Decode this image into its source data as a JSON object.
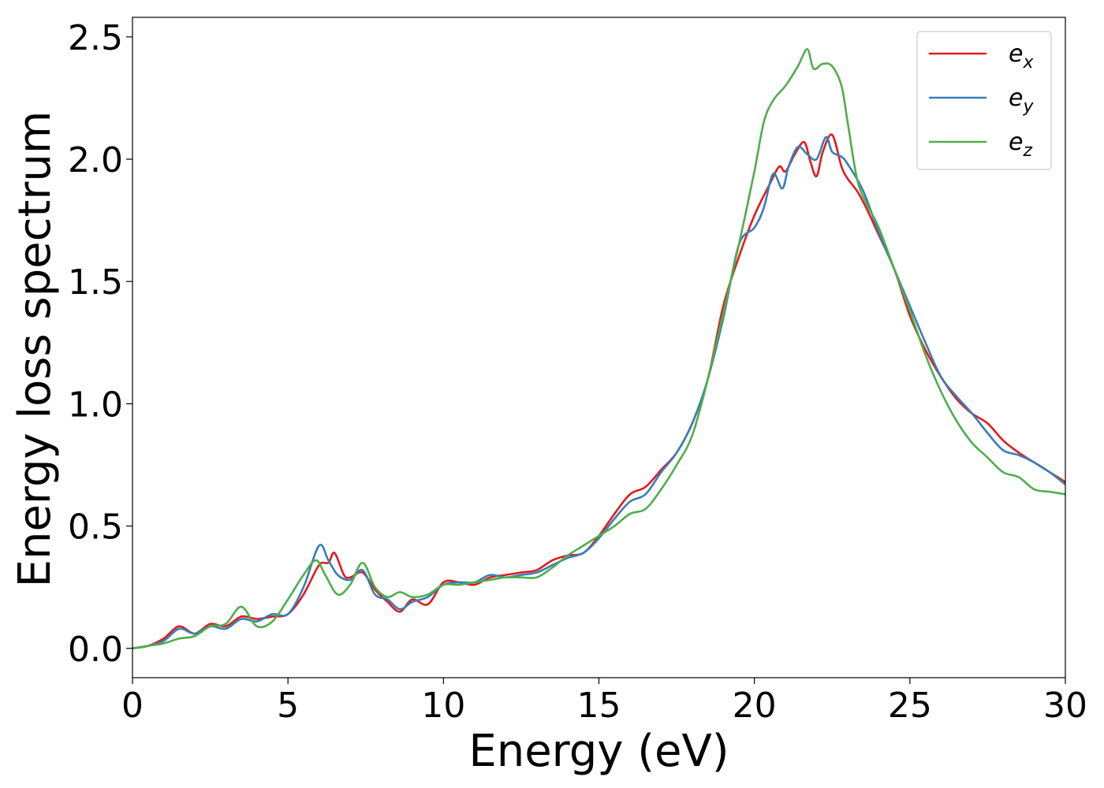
{
  "chart_data": {
    "type": "line",
    "xlabel": "Energy (eV)",
    "ylabel": "Energy loss spectrum",
    "xlim": [
      0,
      30
    ],
    "ylim": [
      -0.12,
      2.58
    ],
    "xticks": [
      "0",
      "5",
      "10",
      "15",
      "20",
      "25",
      "30"
    ],
    "yticks": [
      "0.0",
      "0.5",
      "1.0",
      "1.5",
      "2.0",
      "2.5"
    ],
    "grid": false,
    "legend_position": "top-right",
    "series": [
      {
        "name": "e_x",
        "label_base": "e",
        "label_sub": "x",
        "color": "#e41a1c",
        "x": [
          0,
          0.5,
          1.0,
          1.5,
          2.0,
          2.5,
          3.0,
          3.5,
          4.0,
          4.5,
          5.0,
          5.5,
          6.0,
          6.3,
          6.5,
          6.8,
          7.0,
          7.4,
          7.8,
          8.2,
          8.6,
          9.0,
          9.5,
          10.0,
          10.5,
          11.0,
          11.5,
          12.0,
          12.5,
          13.0,
          13.5,
          14.0,
          14.5,
          15.0,
          15.5,
          16.0,
          16.5,
          17.0,
          17.5,
          18.0,
          18.5,
          19.0,
          19.5,
          20.0,
          20.5,
          20.8,
          21.0,
          21.3,
          21.6,
          21.8,
          22.0,
          22.2,
          22.5,
          22.8,
          23.0,
          23.3,
          23.6,
          24.0,
          24.5,
          25.0,
          25.5,
          26.0,
          26.5,
          27.0,
          27.5,
          28.0,
          28.5,
          29.0,
          29.5,
          30.0
        ],
        "y": [
          0.0,
          0.01,
          0.04,
          0.09,
          0.06,
          0.1,
          0.09,
          0.13,
          0.12,
          0.13,
          0.14,
          0.22,
          0.34,
          0.35,
          0.39,
          0.3,
          0.29,
          0.31,
          0.24,
          0.19,
          0.15,
          0.2,
          0.18,
          0.27,
          0.27,
          0.26,
          0.29,
          0.3,
          0.31,
          0.32,
          0.36,
          0.38,
          0.39,
          0.46,
          0.55,
          0.63,
          0.66,
          0.73,
          0.8,
          0.92,
          1.1,
          1.4,
          1.6,
          1.77,
          1.9,
          1.97,
          1.95,
          2.02,
          2.07,
          1.99,
          1.93,
          2.03,
          2.1,
          1.97,
          1.92,
          1.87,
          1.8,
          1.69,
          1.55,
          1.36,
          1.22,
          1.11,
          1.02,
          0.96,
          0.92,
          0.85,
          0.8,
          0.76,
          0.72,
          0.68
        ]
      },
      {
        "name": "e_y",
        "label_base": "e",
        "label_sub": "y",
        "color": "#377eb8",
        "x": [
          0,
          0.5,
          1.0,
          1.5,
          2.0,
          2.5,
          3.0,
          3.5,
          4.0,
          4.5,
          5.0,
          5.5,
          6.0,
          6.3,
          6.6,
          7.0,
          7.4,
          7.8,
          8.2,
          8.6,
          9.0,
          9.5,
          10.0,
          10.5,
          11.0,
          11.5,
          12.0,
          12.5,
          13.0,
          13.5,
          14.0,
          14.5,
          15.0,
          15.5,
          16.0,
          16.5,
          17.0,
          17.5,
          18.0,
          18.5,
          19.0,
          19.5,
          20.0,
          20.3,
          20.6,
          20.9,
          21.1,
          21.4,
          21.7,
          22.0,
          22.3,
          22.5,
          22.8,
          23.0,
          23.5,
          24.0,
          24.5,
          25.0,
          25.5,
          26.0,
          26.5,
          27.0,
          27.5,
          28.0,
          28.5,
          29.0,
          29.5,
          30.0
        ],
        "y": [
          0.0,
          0.01,
          0.03,
          0.08,
          0.06,
          0.09,
          0.08,
          0.12,
          0.11,
          0.14,
          0.14,
          0.25,
          0.42,
          0.36,
          0.3,
          0.28,
          0.32,
          0.22,
          0.2,
          0.16,
          0.19,
          0.21,
          0.26,
          0.27,
          0.27,
          0.3,
          0.29,
          0.3,
          0.31,
          0.34,
          0.37,
          0.39,
          0.45,
          0.53,
          0.6,
          0.63,
          0.72,
          0.8,
          0.92,
          1.1,
          1.35,
          1.65,
          1.72,
          1.8,
          1.94,
          1.88,
          1.97,
          2.05,
          2.02,
          2.0,
          2.09,
          2.03,
          2.01,
          1.98,
          1.87,
          1.7,
          1.55,
          1.4,
          1.25,
          1.11,
          1.03,
          0.96,
          0.88,
          0.81,
          0.79,
          0.76,
          0.72,
          0.67
        ]
      },
      {
        "name": "e_z",
        "label_base": "e",
        "label_sub": "z",
        "color": "#4daf4a",
        "x": [
          0,
          0.5,
          1.0,
          1.5,
          2.0,
          2.5,
          3.0,
          3.5,
          4.0,
          4.5,
          5.0,
          5.5,
          5.9,
          6.2,
          6.6,
          7.0,
          7.4,
          7.8,
          8.2,
          8.6,
          9.0,
          9.5,
          10.0,
          10.5,
          11.0,
          11.5,
          12.0,
          12.5,
          13.0,
          13.5,
          14.0,
          14.5,
          15.0,
          15.5,
          16.0,
          16.5,
          17.0,
          17.5,
          18.0,
          18.5,
          19.0,
          19.5,
          20.0,
          20.3,
          20.6,
          21.0,
          21.4,
          21.7,
          21.9,
          22.2,
          22.5,
          22.8,
          23.0,
          23.3,
          23.6,
          24.0,
          24.5,
          25.0,
          25.5,
          26.0,
          26.5,
          27.0,
          27.5,
          28.0,
          28.5,
          29.0,
          29.5,
          30.0
        ],
        "y": [
          0.0,
          0.01,
          0.02,
          0.04,
          0.05,
          0.09,
          0.1,
          0.17,
          0.09,
          0.11,
          0.2,
          0.3,
          0.36,
          0.3,
          0.22,
          0.26,
          0.35,
          0.25,
          0.21,
          0.23,
          0.21,
          0.22,
          0.26,
          0.26,
          0.27,
          0.28,
          0.29,
          0.29,
          0.29,
          0.33,
          0.38,
          0.42,
          0.46,
          0.5,
          0.55,
          0.57,
          0.65,
          0.75,
          0.87,
          1.1,
          1.37,
          1.65,
          1.95,
          2.15,
          2.24,
          2.3,
          2.38,
          2.45,
          2.37,
          2.39,
          2.38,
          2.3,
          2.15,
          1.92,
          1.82,
          1.72,
          1.55,
          1.38,
          1.2,
          1.05,
          0.93,
          0.84,
          0.78,
          0.72,
          0.7,
          0.65,
          0.64,
          0.63
        ]
      }
    ]
  }
}
